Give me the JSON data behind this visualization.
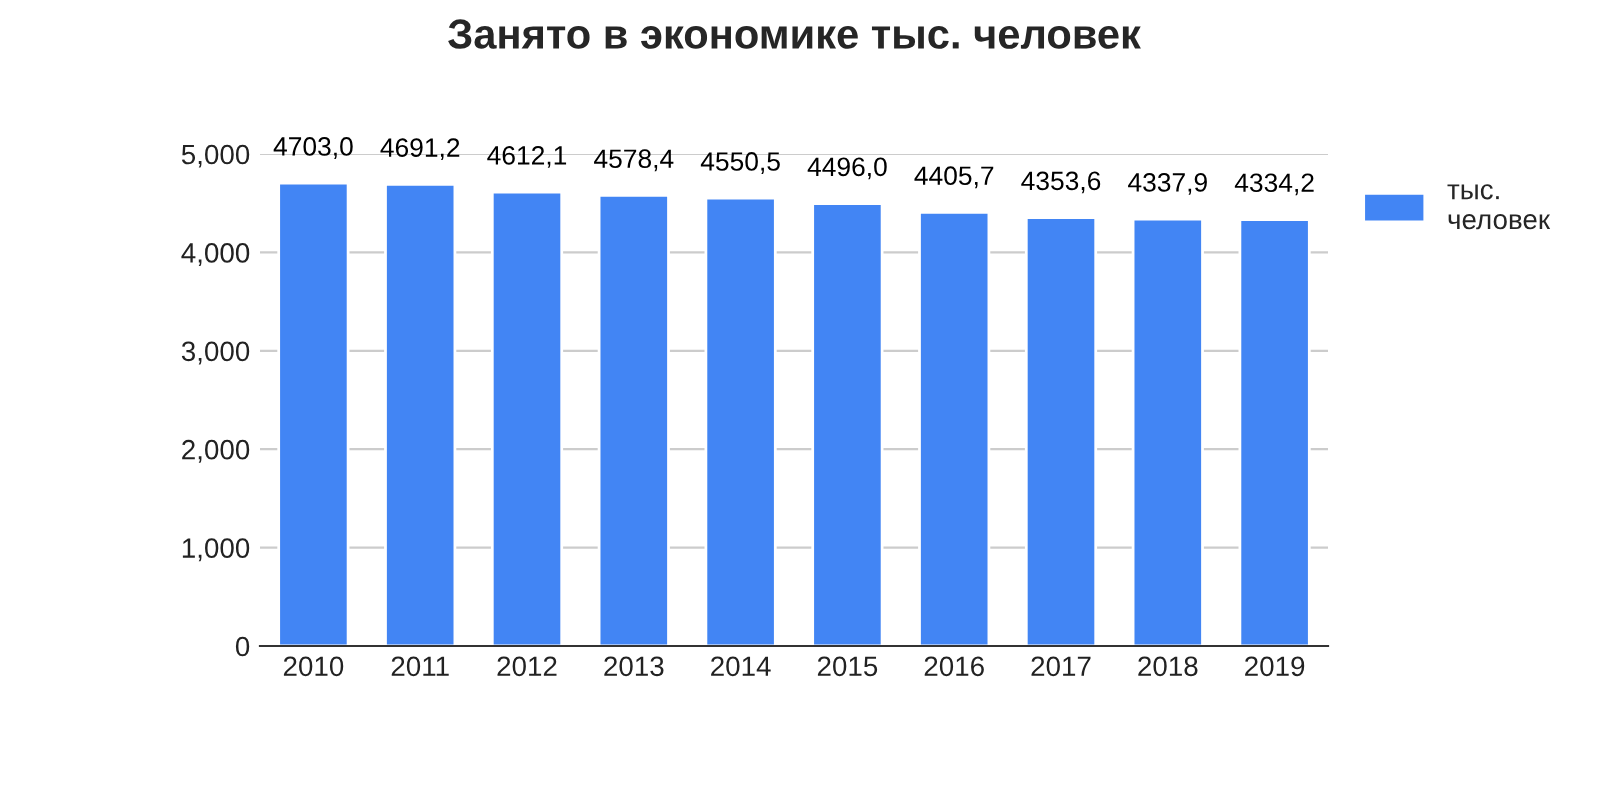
{
  "chart_data": {
    "type": "bar",
    "title": "Занято в экономике тыс. человек",
    "categories": [
      "2010",
      "2011",
      "2012",
      "2013",
      "2014",
      "2015",
      "2016",
      "2017",
      "2018",
      "2019"
    ],
    "series": [
      {
        "name": "тыс. человек",
        "color": "#4285f4",
        "values": [
          4703.0,
          4691.2,
          4612.1,
          4578.4,
          4550.5,
          4496.0,
          4405.7,
          4353.6,
          4337.9,
          4334.2
        ],
        "value_labels": [
          "4703,0",
          "4691,2",
          "4612,1",
          "4578,4",
          "4550,5",
          "4496,0",
          "4405,7",
          "4353,6",
          "4337,9",
          "4334,2"
        ]
      }
    ],
    "ylim": [
      0,
      5000
    ],
    "yticks": [
      {
        "value": 0,
        "label": "0"
      },
      {
        "value": 1000,
        "label": "1,000"
      },
      {
        "value": 2000,
        "label": "2,000"
      },
      {
        "value": 3000,
        "label": "3,000"
      },
      {
        "value": 4000,
        "label": "4,000"
      },
      {
        "value": 5000,
        "label": "5,000"
      }
    ],
    "grid": "y",
    "legend": "right"
  }
}
